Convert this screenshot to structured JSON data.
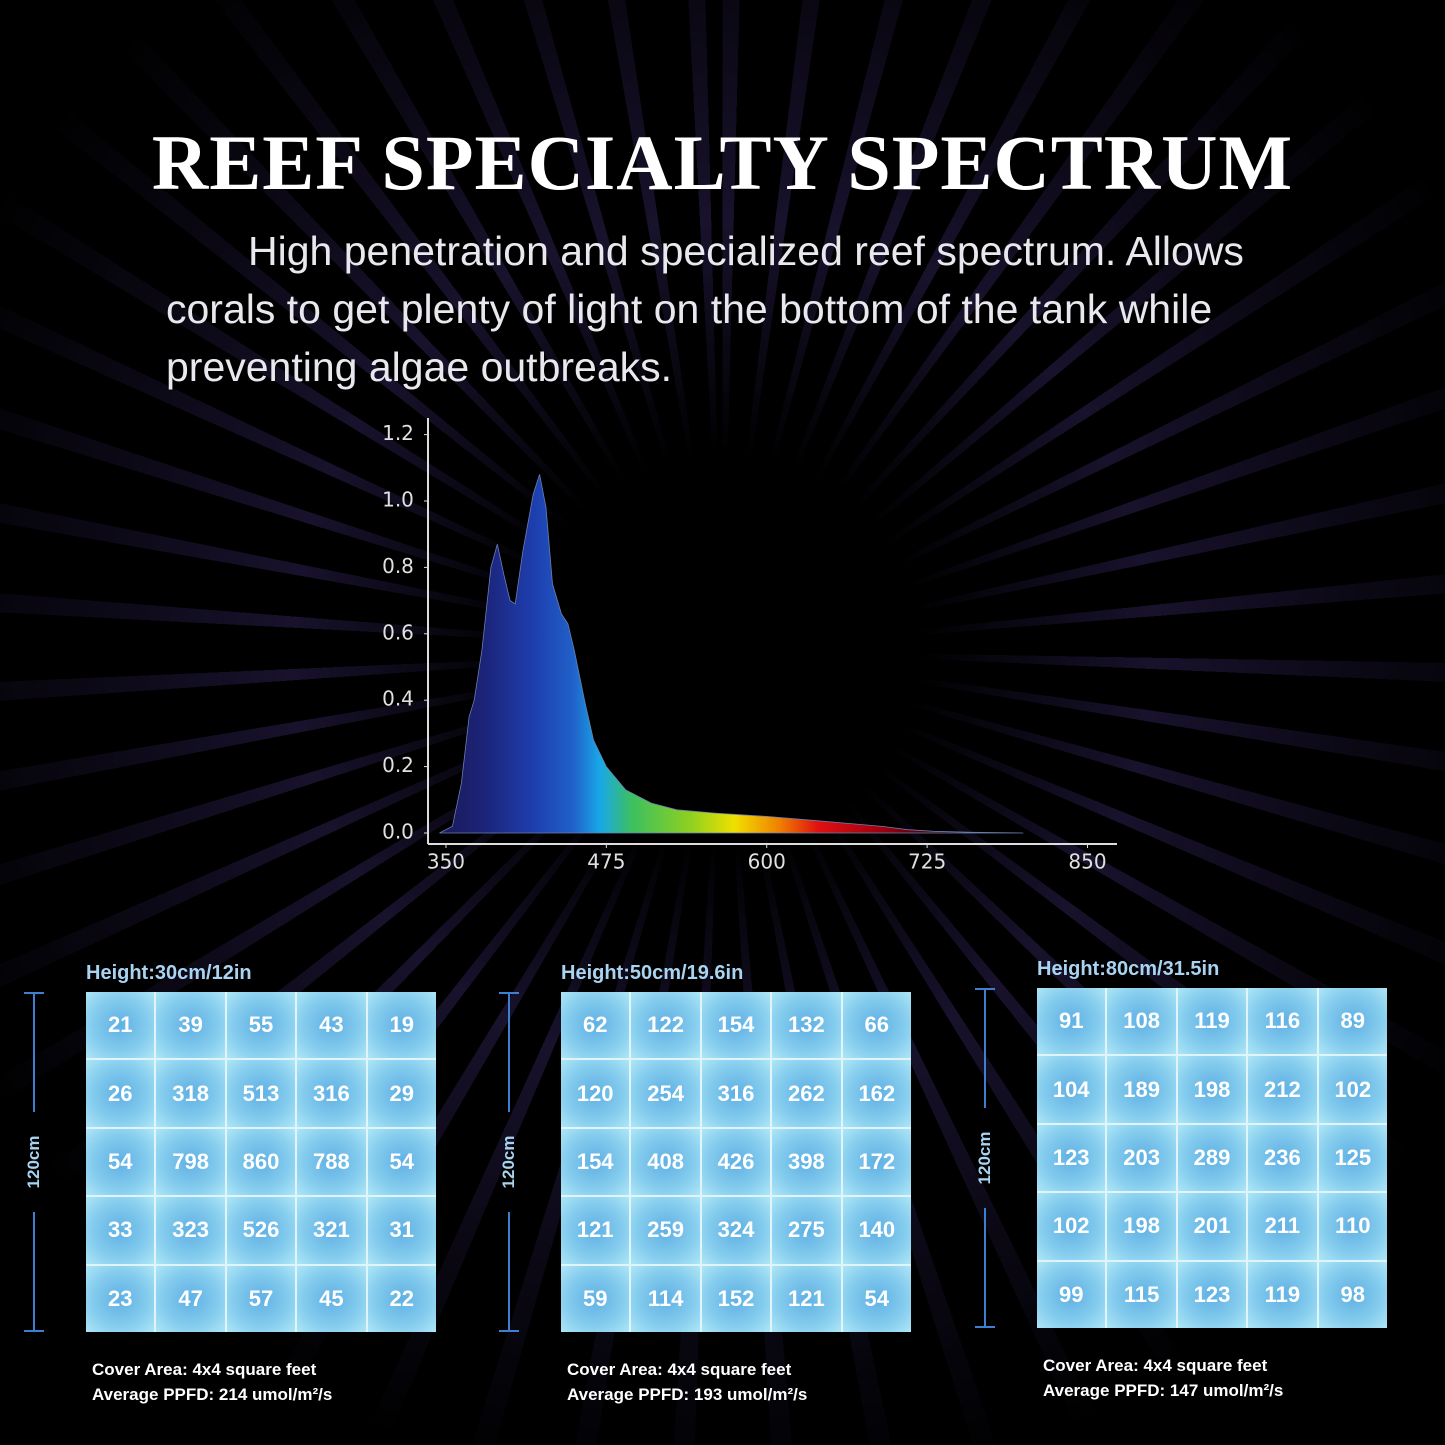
{
  "header": {
    "title": "REEF SPECIALTY SPECTRUM",
    "description": "High penetration and specialized reef spectrum. Allows corals to get plenty of light on the bottom of the tank while preventing algae outbreaks."
  },
  "chart_data": {
    "type": "area",
    "x": [
      345,
      355,
      362,
      368,
      372,
      378,
      385,
      390,
      395,
      400,
      404,
      410,
      418,
      423,
      428,
      433,
      440,
      445,
      450,
      458,
      465,
      475,
      490,
      510,
      530,
      560,
      600,
      630,
      660,
      690,
      710,
      730,
      760,
      800
    ],
    "values": [
      0.0,
      0.02,
      0.15,
      0.35,
      0.4,
      0.55,
      0.8,
      0.87,
      0.78,
      0.7,
      0.69,
      0.85,
      1.02,
      1.08,
      0.98,
      0.75,
      0.66,
      0.63,
      0.55,
      0.4,
      0.28,
      0.2,
      0.13,
      0.09,
      0.07,
      0.06,
      0.05,
      0.04,
      0.03,
      0.02,
      0.01,
      0.005,
      0.002,
      0.0
    ],
    "xlim": [
      336,
      873
    ],
    "ylim": [
      0,
      1.25
    ],
    "xticks": [
      350,
      475,
      600,
      725,
      850
    ],
    "yticks": [
      {
        "value": 0,
        "label": "0.0"
      },
      0.2,
      0.4,
      0.6,
      0.8,
      {
        "value": 1,
        "label": "1.0"
      },
      1.2
    ]
  },
  "ppfd_maps": [
    {
      "height": "Height:30cm/12in",
      "side": "120cm",
      "rows": [
        [
          21,
          39,
          55,
          43,
          19
        ],
        [
          26,
          318,
          513,
          316,
          29
        ],
        [
          54,
          798,
          860,
          788,
          54
        ],
        [
          33,
          323,
          526,
          321,
          31
        ],
        [
          23,
          47,
          57,
          45,
          22
        ]
      ],
      "cover": "Cover Area: 4x4 square feet",
      "average": "Average PPFD: 214 umol/m²/s"
    },
    {
      "height": "Height:50cm/19.6in",
      "side": "120cm",
      "rows": [
        [
          62,
          122,
          154,
          132,
          66
        ],
        [
          120,
          254,
          316,
          262,
          162
        ],
        [
          154,
          408,
          426,
          398,
          172
        ],
        [
          121,
          259,
          324,
          275,
          140
        ],
        [
          59,
          114,
          152,
          121,
          54
        ]
      ],
      "cover": "Cover Area: 4x4 square feet",
      "average": "Average PPFD: 193 umol/m²/s"
    },
    {
      "height": "Height:80cm/31.5in",
      "side": "120cm",
      "rows": [
        [
          91,
          108,
          119,
          116,
          89
        ],
        [
          104,
          189,
          198,
          212,
          102
        ],
        [
          123,
          203,
          289,
          236,
          125
        ],
        [
          102,
          198,
          201,
          211,
          110
        ],
        [
          99,
          115,
          123,
          119,
          98
        ]
      ],
      "cover": "Cover Area: 4x4 square feet",
      "average": "Average PPFD: 147 umol/m²/s"
    }
  ]
}
